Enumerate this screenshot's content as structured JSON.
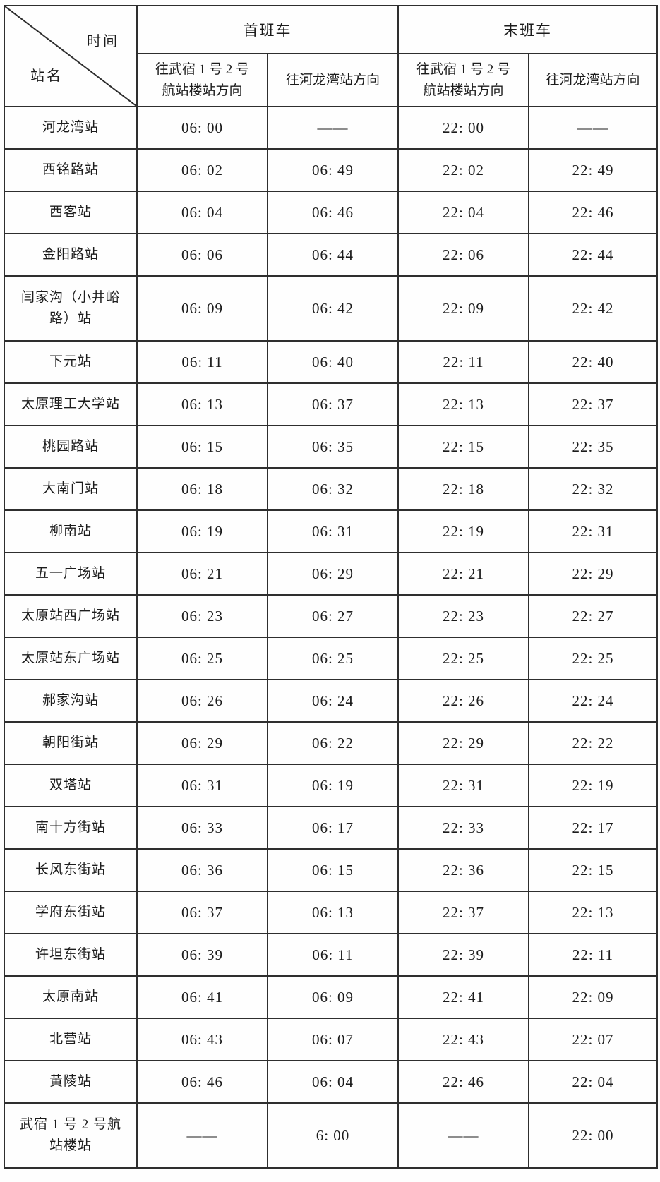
{
  "table": {
    "corner": {
      "time_label": "时间",
      "station_label": "站名"
    },
    "train_groups": [
      "首班车",
      "末班车"
    ],
    "direction_headers": [
      "往武宿 1 号 2 号\n航站楼站方向",
      "往河龙湾站方向",
      "往武宿 1 号 2 号\n航站楼站方向",
      "往河龙湾站方向"
    ],
    "rows": [
      {
        "station": "河龙湾站",
        "times": [
          "06: 00",
          "——",
          "22: 00",
          "——"
        ]
      },
      {
        "station": "西铭路站",
        "times": [
          "06: 02",
          "06: 49",
          "22: 02",
          "22: 49"
        ]
      },
      {
        "station": "西客站",
        "times": [
          "06: 04",
          "06: 46",
          "22: 04",
          "22: 46"
        ]
      },
      {
        "station": "金阳路站",
        "times": [
          "06: 06",
          "06: 44",
          "22: 06",
          "22: 44"
        ]
      },
      {
        "station": "闫家沟（小井峪\n路）站",
        "times": [
          "06: 09",
          "06: 42",
          "22: 09",
          "22: 42"
        ]
      },
      {
        "station": "下元站",
        "times": [
          "06: 11",
          "06: 40",
          "22: 11",
          "22: 40"
        ]
      },
      {
        "station": "太原理工大学站",
        "times": [
          "06: 13",
          "06: 37",
          "22: 13",
          "22: 37"
        ]
      },
      {
        "station": "桃园路站",
        "times": [
          "06: 15",
          "06: 35",
          "22: 15",
          "22: 35"
        ]
      },
      {
        "station": "大南门站",
        "times": [
          "06: 18",
          "06: 32",
          "22: 18",
          "22: 32"
        ]
      },
      {
        "station": "柳南站",
        "times": [
          "06: 19",
          "06: 31",
          "22: 19",
          "22: 31"
        ]
      },
      {
        "station": "五一广场站",
        "times": [
          "06: 21",
          "06: 29",
          "22: 21",
          "22: 29"
        ]
      },
      {
        "station": "太原站西广场站",
        "times": [
          "06: 23",
          "06: 27",
          "22: 23",
          "22: 27"
        ]
      },
      {
        "station": "太原站东广场站",
        "times": [
          "06: 25",
          "06: 25",
          "22: 25",
          "22: 25"
        ]
      },
      {
        "station": "郝家沟站",
        "times": [
          "06: 26",
          "06: 24",
          "22: 26",
          "22: 24"
        ]
      },
      {
        "station": "朝阳街站",
        "times": [
          "06: 29",
          "06: 22",
          "22: 29",
          "22: 22"
        ]
      },
      {
        "station": "双塔站",
        "times": [
          "06: 31",
          "06: 19",
          "22: 31",
          "22: 19"
        ]
      },
      {
        "station": "南十方街站",
        "times": [
          "06: 33",
          "06: 17",
          "22: 33",
          "22: 17"
        ]
      },
      {
        "station": "长风东街站",
        "times": [
          "06: 36",
          "06: 15",
          "22: 36",
          "22: 15"
        ]
      },
      {
        "station": "学府东街站",
        "times": [
          "06: 37",
          "06: 13",
          "22: 37",
          "22: 13"
        ]
      },
      {
        "station": "许坦东街站",
        "times": [
          "06: 39",
          "06: 11",
          "22: 39",
          "22: 11"
        ]
      },
      {
        "station": "太原南站",
        "times": [
          "06: 41",
          "06: 09",
          "22: 41",
          "22: 09"
        ]
      },
      {
        "station": "北营站",
        "times": [
          "06: 43",
          "06: 07",
          "22: 43",
          "22: 07"
        ]
      },
      {
        "station": "黄陵站",
        "times": [
          "06: 46",
          "06: 04",
          "22: 46",
          "22: 04"
        ]
      },
      {
        "station": "武宿 1 号 2 号航\n站楼站",
        "times": [
          "——",
          "6: 00",
          "——",
          "22: 00"
        ]
      }
    ]
  },
  "colors": {
    "border": "#2e2e2e",
    "text": "#1c1c1c",
    "background": "#fefefe"
  }
}
